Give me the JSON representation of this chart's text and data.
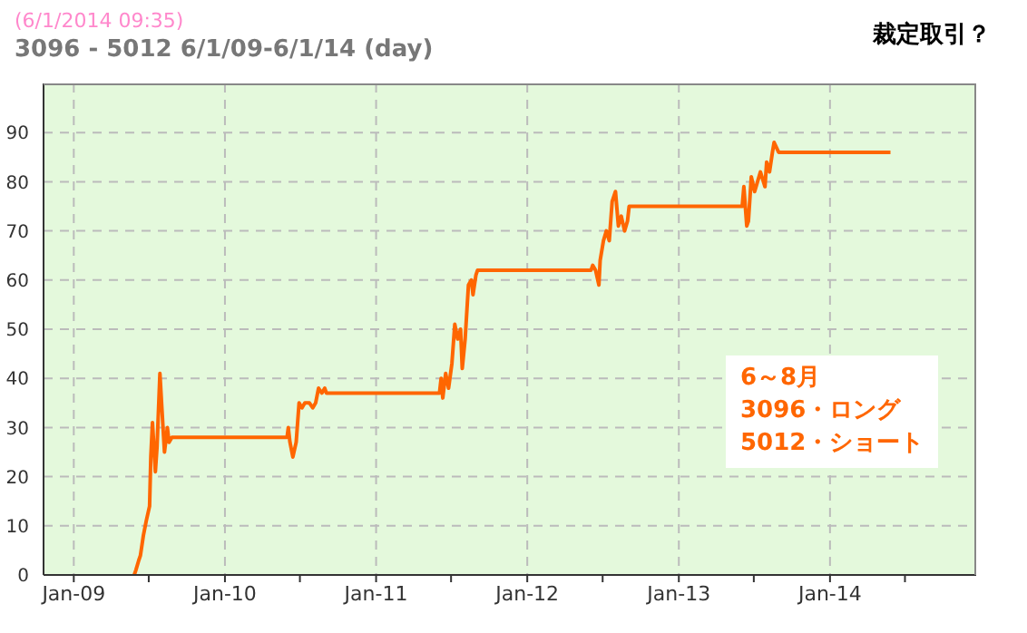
{
  "chart_data": {
    "type": "line",
    "title": "3096 - 5012  6/1/09-6/1/14 (day)",
    "subtitle": "(6/1/2014 09:35)",
    "annotations": [
      "裁定取引？",
      "6～8月",
      "3096・ロング",
      "5012・ショート"
    ],
    "x": [
      "2009-05-27",
      "2009-05-31",
      "2009-06-07",
      "2009-06-11",
      "2009-06-18",
      "2009-06-25",
      "2009-07-03",
      "2009-07-06",
      "2009-07-10",
      "2009-07-17",
      "2009-07-21",
      "2009-07-28",
      "2009-08-01",
      "2009-08-08",
      "2009-08-15",
      "2009-08-19",
      "2009-08-26",
      "2010-05-31",
      "2010-06-03",
      "2010-06-07",
      "2010-06-14",
      "2010-06-22",
      "2010-06-29",
      "2010-07-06",
      "2010-07-13",
      "2010-07-24",
      "2010-08-01",
      "2010-08-08",
      "2010-08-15",
      "2010-08-23",
      "2010-08-30",
      "2010-09-03",
      "2011-06-03",
      "2011-06-07",
      "2011-06-11",
      "2011-06-18",
      "2011-06-25",
      "2011-07-03",
      "2011-07-10",
      "2011-07-17",
      "2011-07-24",
      "2011-07-28",
      "2011-08-04",
      "2011-08-12",
      "2011-08-19",
      "2011-08-23",
      "2011-08-30",
      "2011-09-03",
      "2012-06-03",
      "2012-06-07",
      "2012-06-14",
      "2012-06-22",
      "2012-06-25",
      "2012-07-03",
      "2012-07-10",
      "2012-07-17",
      "2012-07-24",
      "2012-08-01",
      "2012-08-08",
      "2012-08-15",
      "2012-08-23",
      "2012-08-30",
      "2012-09-03",
      "2013-06-03",
      "2013-06-07",
      "2013-06-14",
      "2013-06-18",
      "2013-06-25",
      "2013-07-03",
      "2013-07-10",
      "2013-07-17",
      "2013-07-28",
      "2013-08-01",
      "2013-08-08",
      "2013-08-15",
      "2013-08-19",
      "2013-08-30",
      "2014-05-27"
    ],
    "series": [
      {
        "color": "#ff6600",
        "values": [
          0,
          1,
          3,
          4,
          8,
          11,
          14,
          24,
          31,
          21,
          26,
          41,
          35,
          25,
          30,
          27,
          28,
          28,
          30,
          27,
          24,
          27,
          35,
          34,
          35,
          35,
          34,
          35,
          38,
          37,
          38,
          37,
          37,
          40,
          36,
          41,
          38,
          43,
          51,
          48,
          50,
          42,
          48,
          59,
          60,
          57,
          61,
          62,
          62,
          63,
          62,
          59,
          64,
          68,
          70,
          68,
          76,
          78,
          71,
          73,
          70,
          72,
          75,
          75,
          79,
          71,
          72,
          81,
          78,
          80,
          82,
          79,
          84,
          82,
          86,
          88,
          86,
          86
        ]
      }
    ],
    "xlim": [
      "2008-10-20",
      "2014-12-20"
    ],
    "xticks": [
      {
        "value": "2009-01-01",
        "label": "Jan-09"
      },
      {
        "value": "2009-07-01",
        "label": null
      },
      {
        "value": "2010-01-01",
        "label": "Jan-10"
      },
      {
        "value": "2010-07-01",
        "label": null
      },
      {
        "value": "2011-01-01",
        "label": "Jan-11"
      },
      {
        "value": "2011-07-01",
        "label": null
      },
      {
        "value": "2012-01-01",
        "label": "Jan-12"
      },
      {
        "value": "2012-07-01",
        "label": null
      },
      {
        "value": "2013-01-01",
        "label": "Jan-13"
      },
      {
        "value": "2013-07-01",
        "label": null
      },
      {
        "value": "2014-01-01",
        "label": "Jan-14"
      },
      {
        "value": "2014-07-01",
        "label": null
      }
    ],
    "ylim": [
      0,
      100
    ],
    "yticks": [
      0,
      10,
      20,
      30,
      40,
      50,
      60,
      70,
      80,
      90
    ],
    "grid": true,
    "legend": false,
    "marker": "none",
    "line_style": "solid"
  }
}
